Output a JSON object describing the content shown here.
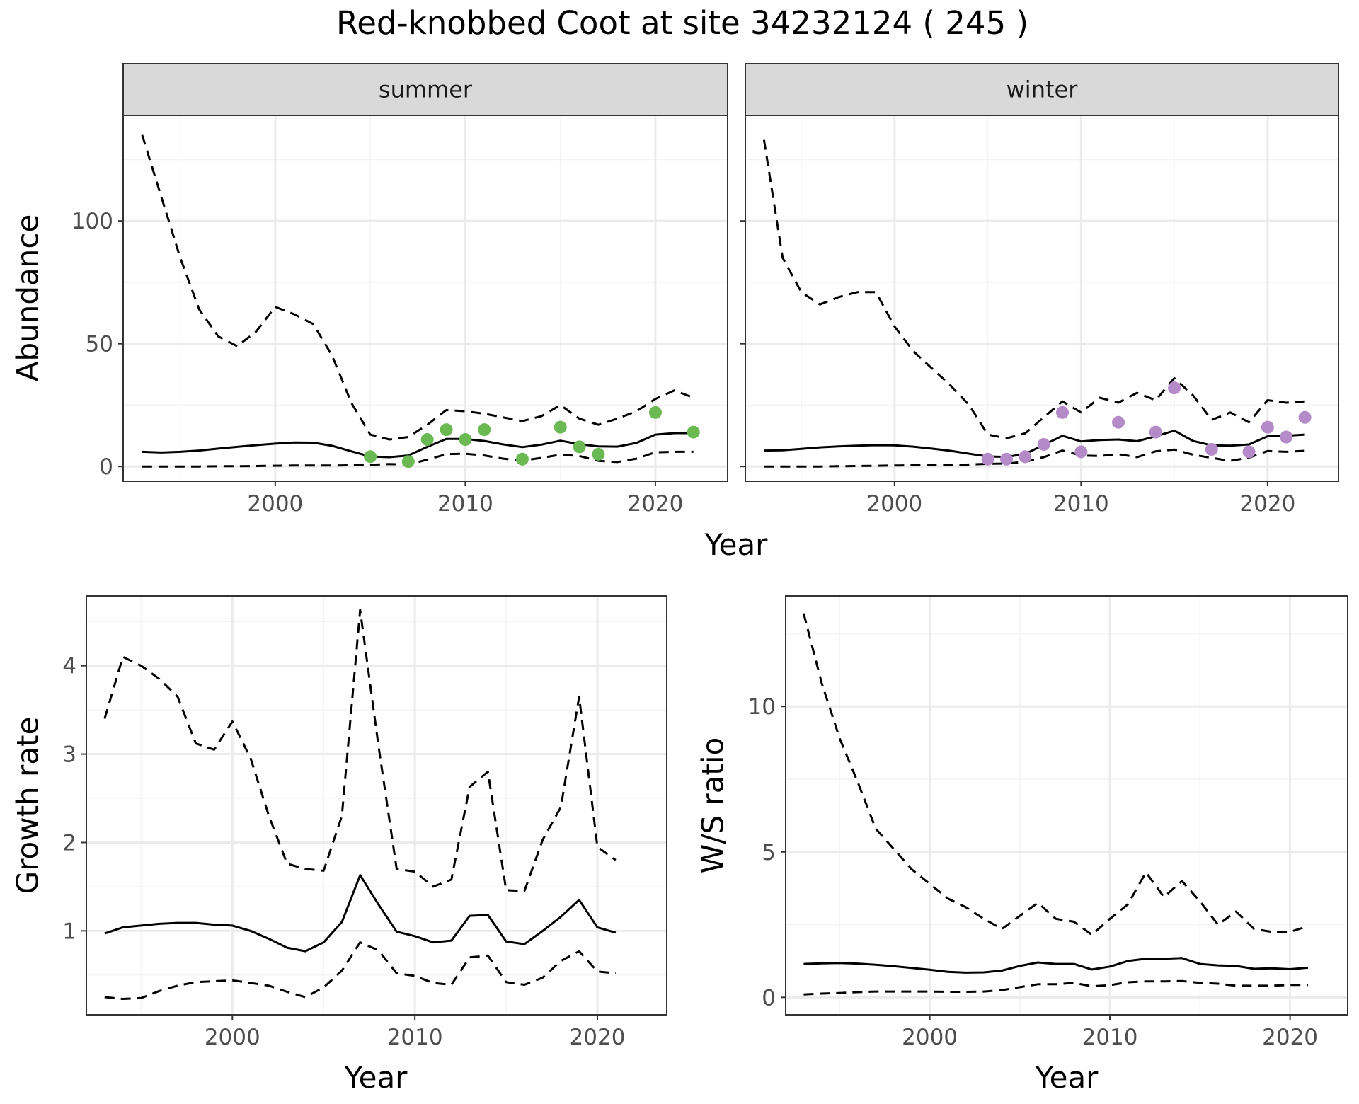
{
  "title": "Red-knobbed Coot at site 34232124 ( 245 )",
  "colors": {
    "summer_points": "#6ab952",
    "winter_points": "#b48ac8",
    "lines": "#000000",
    "grid_major": "#ebebeb",
    "grid_minor": "#f4f4f4",
    "strip_fill": "#d9d9d9",
    "axis_text": "#4d4d4d"
  },
  "chart_data": [
    {
      "type": "line",
      "facet": "summer",
      "strip_label": "summer",
      "xlabel": "Year",
      "ylabel": "Abundance",
      "xlim": [
        1992,
        2023.8
      ],
      "ylim": [
        -6,
        143
      ],
      "x_ticks": [
        2000,
        2010,
        2020
      ],
      "y_ticks": [
        0,
        50,
        100
      ],
      "grid": true,
      "x": [
        1993,
        1994,
        1995,
        1996,
        1997,
        1998,
        1999,
        2000,
        2001,
        2002,
        2003,
        2004,
        2005,
        2006,
        2007,
        2008,
        2009,
        2010,
        2011,
        2012,
        2013,
        2014,
        2015,
        2016,
        2017,
        2018,
        2019,
        2020,
        2021,
        2022
      ],
      "series": [
        {
          "style": "solid",
          "values": [
            6,
            5.7,
            6,
            6.5,
            7.3,
            8,
            8.7,
            9.3,
            9.8,
            9.7,
            8.4,
            6.2,
            4.1,
            3.8,
            4.5,
            8,
            11.2,
            11.2,
            10.4,
            9,
            7.9,
            8.9,
            10.5,
            9.1,
            8.2,
            8.1,
            9.6,
            13,
            13.6,
            13.6
          ]
        },
        {
          "style": "dashed",
          "values": [
            135,
            110,
            85,
            64,
            53,
            49,
            55,
            65,
            62,
            58,
            45,
            26,
            13,
            11,
            12,
            17,
            23,
            22.5,
            21.5,
            20,
            18.5,
            20.5,
            25,
            19.5,
            17,
            19.5,
            22.5,
            27.5,
            31,
            28
          ]
        },
        {
          "style": "dashed",
          "values": [
            0,
            0,
            0,
            0,
            0.1,
            0.1,
            0.2,
            0.3,
            0.4,
            0.4,
            0.4,
            0.5,
            0.7,
            1,
            0.8,
            2.8,
            5,
            5.2,
            4.5,
            3.2,
            2.4,
            3.5,
            4.8,
            4.3,
            2.3,
            1.8,
            3.2,
            5.8,
            6,
            6
          ]
        }
      ],
      "points": {
        "name": "summer counts",
        "x": [
          2005,
          2007,
          2008,
          2009,
          2010,
          2011,
          2013,
          2015,
          2016,
          2017,
          2020,
          2022
        ],
        "y": [
          4,
          2,
          11,
          15,
          11,
          15,
          3,
          16,
          8,
          5,
          22,
          14
        ]
      }
    },
    {
      "type": "line",
      "facet": "winter",
      "strip_label": "winter",
      "xlabel": "Year",
      "ylabel": "Abundance",
      "xlim": [
        1992,
        2023.8
      ],
      "ylim": [
        -6,
        143
      ],
      "x_ticks": [
        2000,
        2010,
        2020
      ],
      "y_ticks": [
        0,
        50,
        100
      ],
      "grid": true,
      "x": [
        1993,
        1994,
        1995,
        1996,
        1997,
        1998,
        1999,
        2000,
        2001,
        2002,
        2003,
        2004,
        2005,
        2006,
        2007,
        2008,
        2009,
        2010,
        2011,
        2012,
        2013,
        2014,
        2015,
        2016,
        2017,
        2018,
        2019,
        2020,
        2021,
        2022
      ],
      "series": [
        {
          "style": "solid",
          "values": [
            6.5,
            6.6,
            7.2,
            7.8,
            8.2,
            8.5,
            8.7,
            8.6,
            8.1,
            7.3,
            6.4,
            5.2,
            4.1,
            3.9,
            5.1,
            8.8,
            12.5,
            10.2,
            10.8,
            11,
            10.3,
            12.3,
            14.6,
            10.4,
            8.6,
            8.5,
            9,
            12.3,
            12.5,
            13
          ]
        },
        {
          "style": "dashed",
          "values": [
            133,
            85,
            71,
            66,
            69,
            71,
            71,
            57,
            47,
            40,
            33,
            25,
            13,
            11.5,
            13.5,
            20,
            26.5,
            22,
            28,
            26,
            30,
            27,
            36,
            29,
            19,
            22,
            18,
            27,
            26,
            26.5
          ]
        },
        {
          "style": "dashed",
          "values": [
            0,
            0,
            0,
            0,
            0.1,
            0.2,
            0.3,
            0.4,
            0.5,
            0.5,
            0.6,
            0.8,
            1.1,
            1.2,
            1.9,
            3.8,
            6.5,
            4.5,
            4.3,
            5,
            3.8,
            6.2,
            6.9,
            4.8,
            3.5,
            2.3,
            3.6,
            6.3,
            6,
            6.4
          ]
        }
      ],
      "points": {
        "name": "winter counts",
        "x": [
          2005,
          2006,
          2007,
          2008,
          2009,
          2010,
          2012,
          2014,
          2015,
          2017,
          2019,
          2020,
          2021,
          2022
        ],
        "y": [
          3,
          3,
          4,
          9,
          22,
          6,
          18,
          14,
          32,
          7,
          6,
          16,
          12,
          20
        ]
      }
    },
    {
      "type": "line",
      "xlabel": "Year",
      "ylabel": "Growth rate",
      "xlim": [
        1992,
        2023.8
      ],
      "ylim": [
        0.05,
        4.79
      ],
      "x_ticks": [
        2000,
        2010,
        2020
      ],
      "y_ticks": [
        1,
        2,
        3,
        4
      ],
      "grid": true,
      "x": [
        1993,
        1994,
        1995,
        1996,
        1997,
        1998,
        1999,
        2000,
        2001,
        2002,
        2003,
        2004,
        2005,
        2006,
        2007,
        2008,
        2009,
        2010,
        2011,
        2012,
        2013,
        2014,
        2015,
        2016,
        2017,
        2018,
        2019,
        2020,
        2021
      ],
      "series": [
        {
          "style": "solid",
          "values": [
            0.97,
            1.04,
            1.06,
            1.08,
            1.09,
            1.09,
            1.07,
            1.06,
            1.0,
            0.91,
            0.81,
            0.77,
            0.87,
            1.1,
            1.63,
            1.3,
            0.99,
            0.94,
            0.87,
            0.89,
            1.17,
            1.18,
            0.88,
            0.85,
            1.0,
            1.16,
            1.35,
            1.04,
            0.98
          ]
        },
        {
          "style": "dashed",
          "values": [
            3.4,
            4.1,
            4.0,
            3.85,
            3.65,
            3.12,
            3.05,
            3.37,
            2.95,
            2.3,
            1.76,
            1.7,
            1.68,
            2.3,
            4.63,
            3.1,
            1.7,
            1.67,
            1.5,
            1.58,
            2.63,
            2.8,
            1.46,
            1.45,
            2.03,
            2.4,
            3.65,
            1.95,
            1.8
          ]
        },
        {
          "style": "dashed",
          "values": [
            0.25,
            0.23,
            0.24,
            0.32,
            0.38,
            0.42,
            0.43,
            0.44,
            0.41,
            0.38,
            0.31,
            0.25,
            0.36,
            0.55,
            0.87,
            0.78,
            0.52,
            0.49,
            0.41,
            0.39,
            0.7,
            0.72,
            0.42,
            0.39,
            0.47,
            0.66,
            0.77,
            0.54,
            0.52
          ]
        }
      ]
    },
    {
      "type": "line",
      "xlabel": "Year",
      "ylabel": "W/S ratio",
      "xlim": [
        1992,
        2023.2
      ],
      "ylim": [
        -0.6,
        13.8
      ],
      "x_ticks": [
        2000,
        2010,
        2020
      ],
      "y_ticks": [
        0,
        5,
        10
      ],
      "grid": true,
      "x": [
        1993,
        1994,
        1995,
        1996,
        1997,
        1998,
        1999,
        2000,
        2001,
        2002,
        2003,
        2004,
        2005,
        2006,
        2007,
        2008,
        2009,
        2010,
        2011,
        2012,
        2013,
        2014,
        2015,
        2016,
        2017,
        2018,
        2019,
        2020,
        2021
      ],
      "series": [
        {
          "style": "solid",
          "values": [
            1.15,
            1.17,
            1.18,
            1.16,
            1.12,
            1.07,
            1.01,
            0.95,
            0.88,
            0.85,
            0.86,
            0.92,
            1.08,
            1.2,
            1.15,
            1.15,
            0.96,
            1.06,
            1.25,
            1.33,
            1.33,
            1.35,
            1.15,
            1.1,
            1.08,
            0.98,
            1.0,
            0.97,
            1.02
          ]
        },
        {
          "style": "dashed",
          "values": [
            13.2,
            10.8,
            8.9,
            7.4,
            5.8,
            5.1,
            4.4,
            3.9,
            3.4,
            3.1,
            2.7,
            2.35,
            2.8,
            3.25,
            2.7,
            2.6,
            2.15,
            2.7,
            3.2,
            4.3,
            3.45,
            4.0,
            3.3,
            2.5,
            2.95,
            2.35,
            2.25,
            2.25,
            2.45
          ]
        },
        {
          "style": "dashed",
          "values": [
            0.1,
            0.13,
            0.15,
            0.18,
            0.2,
            0.2,
            0.2,
            0.2,
            0.19,
            0.19,
            0.2,
            0.25,
            0.35,
            0.45,
            0.45,
            0.5,
            0.38,
            0.42,
            0.52,
            0.55,
            0.55,
            0.56,
            0.5,
            0.47,
            0.4,
            0.4,
            0.4,
            0.43,
            0.43
          ]
        }
      ]
    }
  ],
  "shared_xlabel_top": "Year"
}
